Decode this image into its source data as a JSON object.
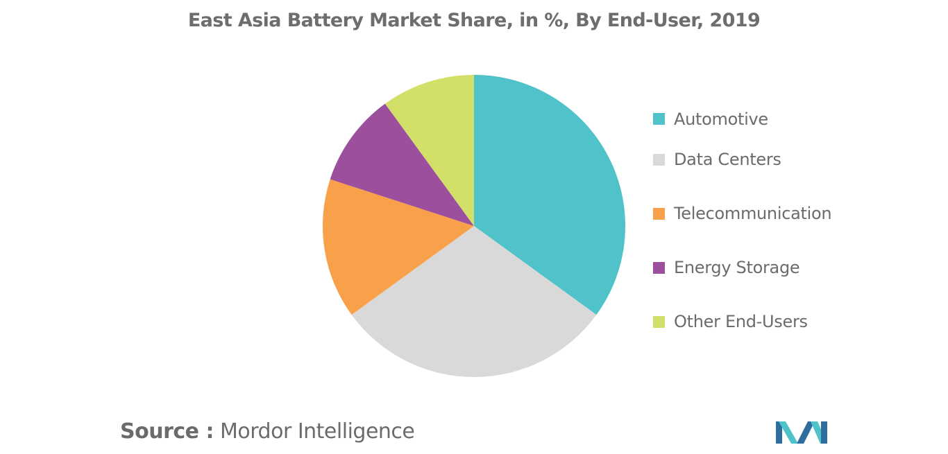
{
  "chart_data": {
    "type": "pie",
    "title": "East Asia Battery Market Share, in %, By End-User, 2019",
    "categories": [
      "Automotive",
      "Data Centers",
      "Telecommunication",
      "Energy Storage",
      "Other End-Users"
    ],
    "values": [
      35,
      30,
      15,
      10,
      10
    ],
    "colors": [
      "#4fc3c9",
      "#d9d9d9",
      "#f9a04a",
      "#9b4f9c",
      "#d2e06a"
    ],
    "start_angle": "12 o'clock",
    "direction": "clockwise",
    "legend_position": "right"
  },
  "source": {
    "prefix": "Source :",
    "name": "Mordor Intelligence"
  },
  "logo": {
    "icon": "mordor-intelligence-logo",
    "colors": [
      "#2f6f9f",
      "#4fc3c9"
    ]
  }
}
